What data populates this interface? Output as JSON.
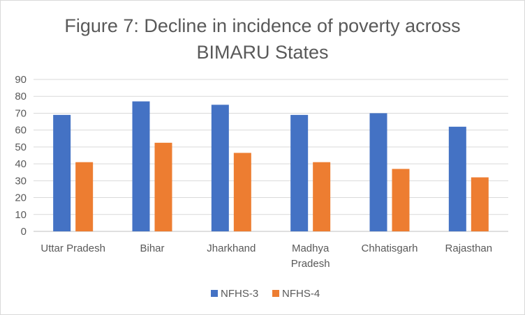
{
  "chart_data": {
    "type": "bar",
    "title_lines": [
      "Figure 7: Decline in incidence of poverty across",
      "BIMARU States"
    ],
    "categories": [
      "Uttar Pradesh",
      "Bihar",
      "Jharkhand",
      "Madhya Pradesh",
      "Chhatisgarh",
      "Rajasthan"
    ],
    "category_lines": [
      [
        "Uttar Pradesh"
      ],
      [
        "Bihar"
      ],
      [
        "Jharkhand"
      ],
      [
        "Madhya",
        "Pradesh"
      ],
      [
        "Chhatisgarh"
      ],
      [
        "Rajasthan"
      ]
    ],
    "series": [
      {
        "name": "NFHS-3",
        "color": "#4472c4",
        "values": [
          69,
          77,
          75,
          69,
          70,
          62
        ]
      },
      {
        "name": "NFHS-4",
        "color": "#ed7d31",
        "values": [
          41,
          52.5,
          46.5,
          41,
          37,
          32
        ]
      }
    ],
    "ylim": [
      0,
      90
    ],
    "yticks": [
      "0",
      "10",
      "20",
      "30",
      "40",
      "50",
      "60",
      "70",
      "80",
      "90"
    ],
    "xlabel": "",
    "ylabel": "",
    "grid": true,
    "legend_position": "bottom"
  }
}
